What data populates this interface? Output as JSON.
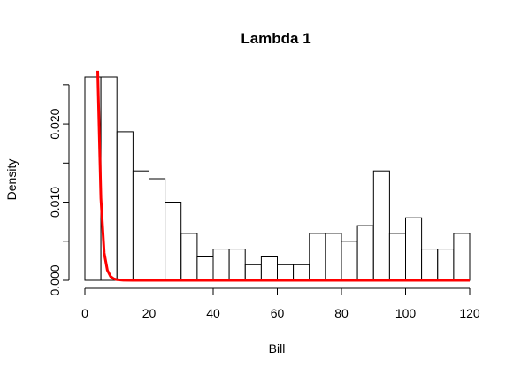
{
  "chart_data": {
    "type": "bar",
    "title": "Lambda 1",
    "xlabel": "Bill",
    "ylabel": "Density",
    "xlim": [
      0,
      120
    ],
    "ylim": [
      0,
      0.026
    ],
    "grid": false,
    "x_ticks": [
      0,
      20,
      40,
      60,
      80,
      100,
      120
    ],
    "x_tick_labels": [
      "0",
      "20",
      "40",
      "60",
      "80",
      "100",
      "120"
    ],
    "y_ticks": [
      0.0,
      0.01,
      0.02
    ],
    "y_tick_labels": [
      "0.000",
      "0.010",
      "0.020"
    ],
    "histogram": {
      "bin_edges": [
        0,
        5,
        10,
        15,
        20,
        25,
        30,
        35,
        40,
        45,
        50,
        55,
        60,
        65,
        70,
        75,
        80,
        85,
        90,
        95,
        100,
        105,
        110,
        115,
        120
      ],
      "density": [
        0.026,
        0.026,
        0.019,
        0.014,
        0.013,
        0.01,
        0.006,
        0.003,
        0.004,
        0.004,
        0.002,
        0.003,
        0.002,
        0.002,
        0.006,
        0.006,
        0.005,
        0.007,
        0.014,
        0.006,
        0.008,
        0.004,
        0.004,
        0.006
      ]
    },
    "series": [
      {
        "type": "line",
        "color": "#ff0000",
        "x": [
          4,
          5,
          6,
          7,
          8,
          9,
          10,
          12,
          15,
          20,
          30,
          40,
          60,
          80,
          100,
          120
        ],
        "y": [
          0.0268,
          0.0105,
          0.0035,
          0.0013,
          0.0005,
          0.0002,
          8e-05,
          1e-05,
          0,
          0,
          0,
          0,
          0,
          0,
          0,
          0
        ]
      }
    ]
  }
}
